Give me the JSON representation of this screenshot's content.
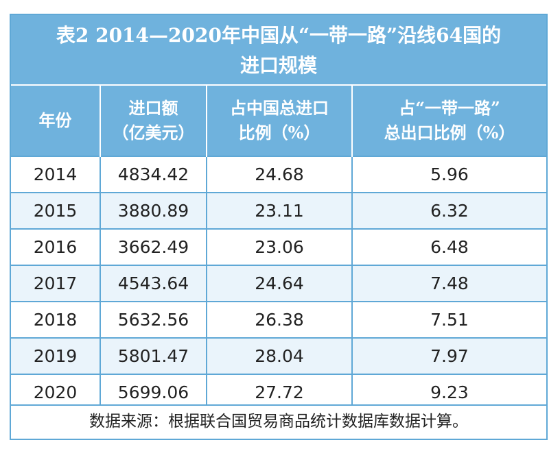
{
  "title": {
    "line1": "表2  2014—2020年中国从“一带一路”沿线64国的",
    "line2": "进口规模"
  },
  "headers": [
    {
      "lines": [
        "年份"
      ]
    },
    {
      "lines": [
        "进口额",
        "（亿美元）"
      ]
    },
    {
      "lines": [
        "占中国总进口",
        "比例（%）"
      ]
    },
    {
      "lines": [
        "占“一带一路”",
        "总出口比例（%）"
      ]
    }
  ],
  "rows": [
    [
      "2014",
      "4834.42",
      "24.68",
      "5.96"
    ],
    [
      "2015",
      "3880.89",
      "23.11",
      "6.32"
    ],
    [
      "2016",
      "3662.49",
      "23.06",
      "6.48"
    ],
    [
      "2017",
      "4543.64",
      "24.64",
      "7.48"
    ],
    [
      "2018",
      "5632.56",
      "26.38",
      "7.51"
    ],
    [
      "2019",
      "5801.47",
      "28.04",
      "7.97"
    ],
    [
      "2020",
      "5699.06",
      "27.72",
      "9.23"
    ]
  ],
  "note": "数据来源：根据联合国贸易商品统计数据库数据计算。",
  "colors": {
    "header_bg": "#6fb2dd",
    "border": "#5fa8d6",
    "stripe": "#eaf4fb"
  }
}
